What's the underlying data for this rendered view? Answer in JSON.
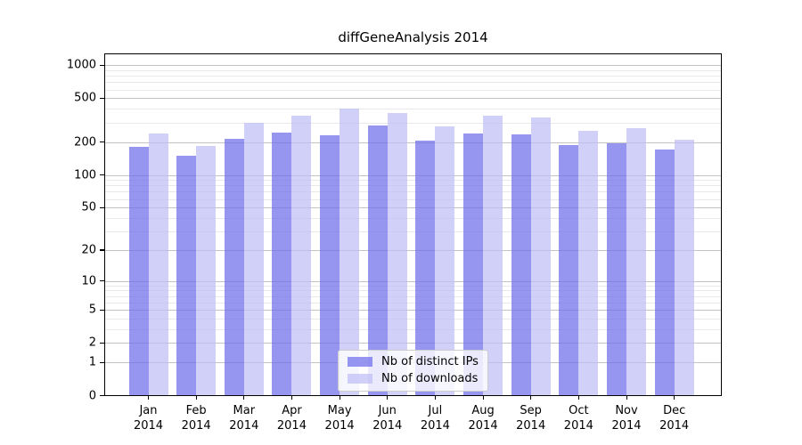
{
  "chart_data": {
    "type": "bar",
    "title": "diffGeneAnalysis 2014",
    "categories": [
      "Jan 2014",
      "Feb 2014",
      "Mar 2014",
      "Apr 2014",
      "May 2014",
      "Jun 2014",
      "Jul 2014",
      "Aug 2014",
      "Sep 2014",
      "Oct 2014",
      "Nov 2014",
      "Dec 2014"
    ],
    "series": [
      {
        "name": "Nb of distinct IPs",
        "color": "#6e6eeb",
        "alpha": 0.72,
        "values": [
          180,
          150,
          215,
          245,
          230,
          285,
          207,
          238,
          235,
          189,
          196,
          172
        ]
      },
      {
        "name": "Nb of downloads",
        "color": "#bebef5",
        "alpha": 0.72,
        "values": [
          238,
          185,
          300,
          350,
          400,
          365,
          280,
          350,
          335,
          252,
          268,
          208
        ]
      }
    ],
    "xlabel": "",
    "ylabel": "",
    "yscale": "log1p",
    "ylim": [
      0,
      1280
    ],
    "yticks": [
      0,
      1,
      2,
      5,
      10,
      20,
      50,
      100,
      200,
      500,
      1000
    ],
    "y_minor_ticks": [
      3,
      4,
      6,
      7,
      8,
      9,
      30,
      40,
      60,
      70,
      80,
      90,
      300,
      400,
      600,
      700,
      800,
      900
    ],
    "grid": true,
    "legend_position": "lower center"
  }
}
